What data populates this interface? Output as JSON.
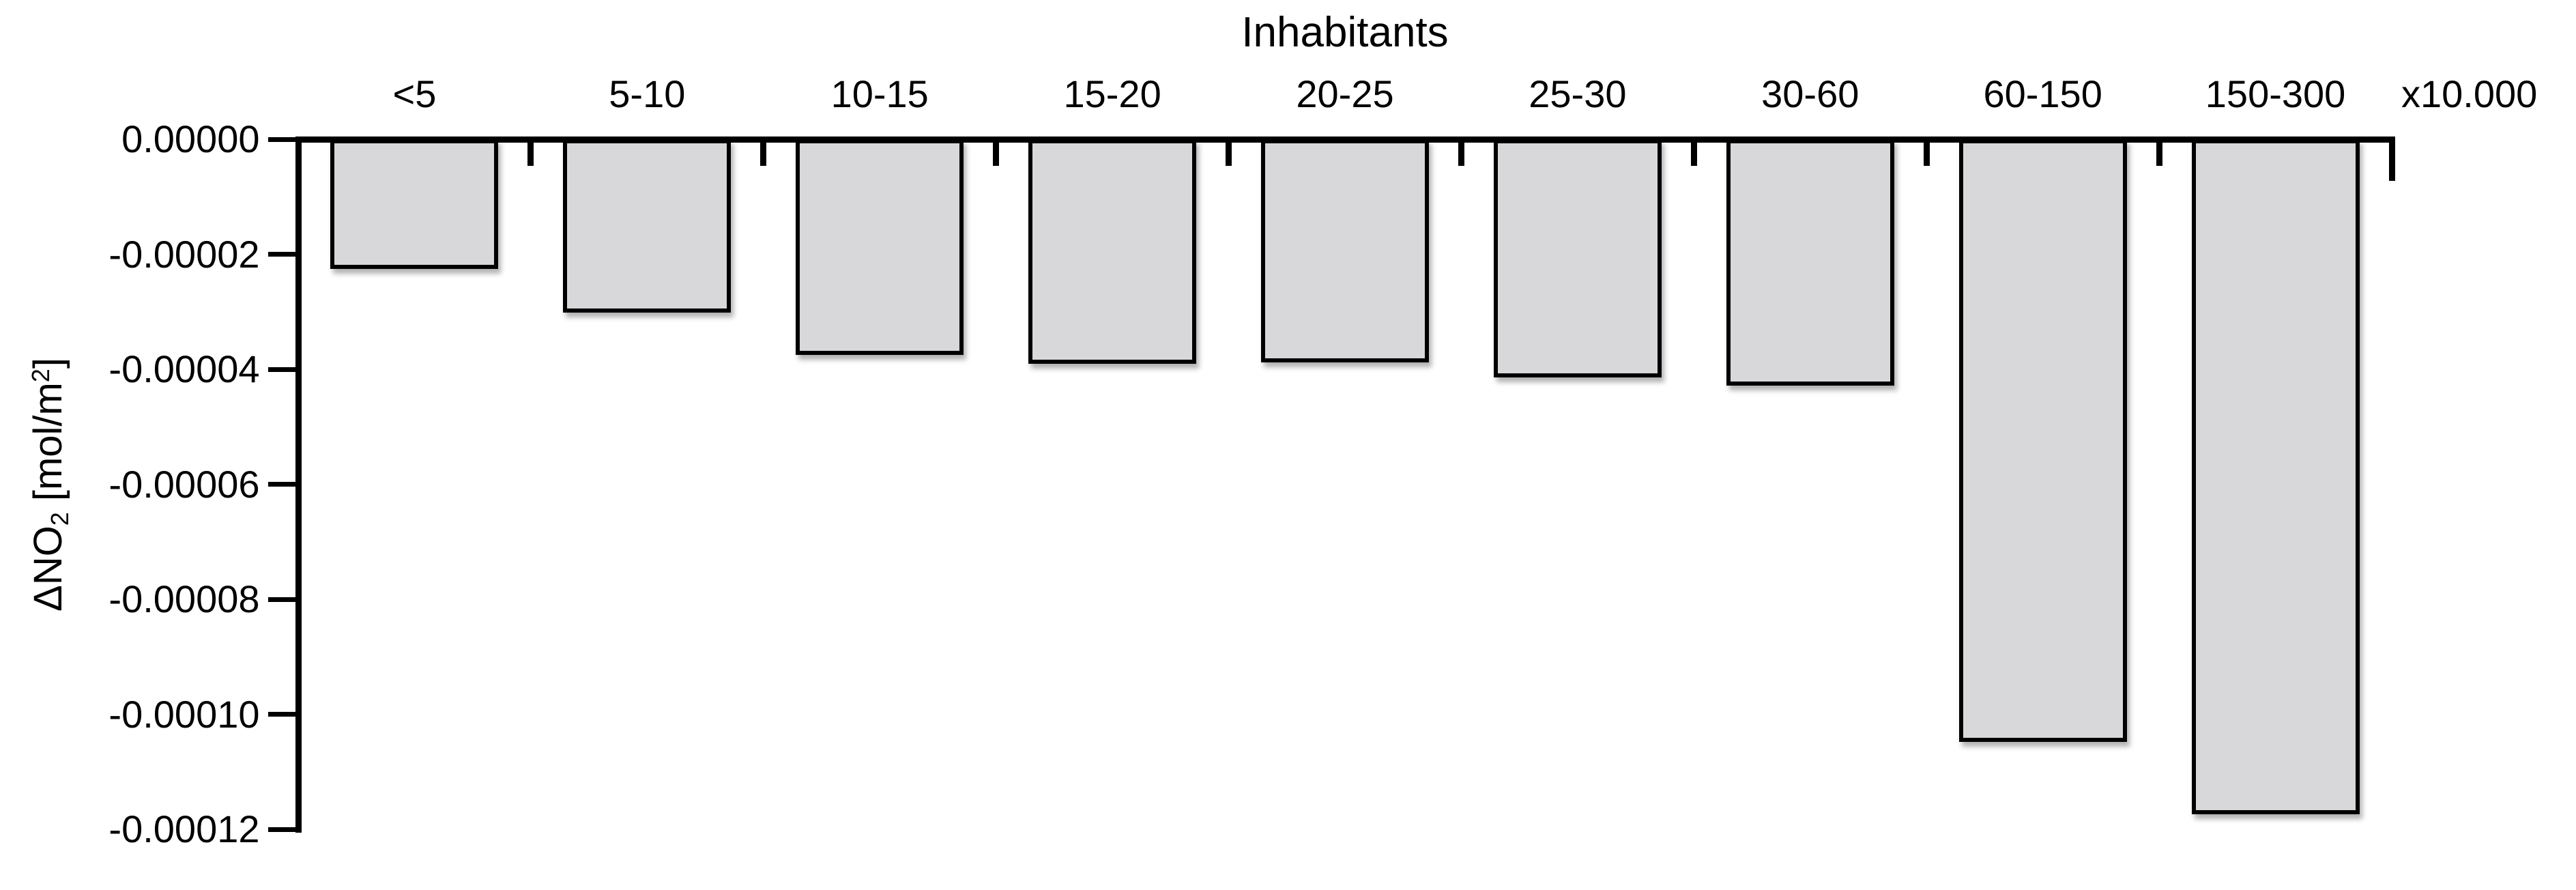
{
  "chart_data": {
    "type": "bar",
    "xlabel": "Inhabitants",
    "x_unit": "x10.000",
    "categories": [
      "<5",
      "5-10",
      "10-15",
      "15-20",
      "20-25",
      "25-30",
      "30-60",
      "60-150",
      "150-300"
    ],
    "values": [
      -2.25e-05,
      -3.02e-05,
      -3.75e-05,
      -3.9e-05,
      -3.88e-05,
      -4.14e-05,
      -4.28e-05,
      -0.0001048,
      -0.0001174
    ],
    "ylabel": "ΔNO2 [mol/m2]",
    "ylabel_parts": {
      "prefix": "ΔNO",
      "sub": "2",
      "mid": " [mol/m",
      "sup": "2",
      "suffix": "]"
    },
    "y_ticks": [
      "0.00000",
      "-0.00002",
      "-0.00004",
      "-0.00006",
      "-0.00008",
      "-0.00010",
      "-0.00012"
    ],
    "ylim": [
      -0.00012,
      0
    ],
    "grid": false,
    "legend": false,
    "bar_fill": "#d8d8da",
    "bar_border": "#000000",
    "text_color": "#000000",
    "background": "#ffffff"
  }
}
